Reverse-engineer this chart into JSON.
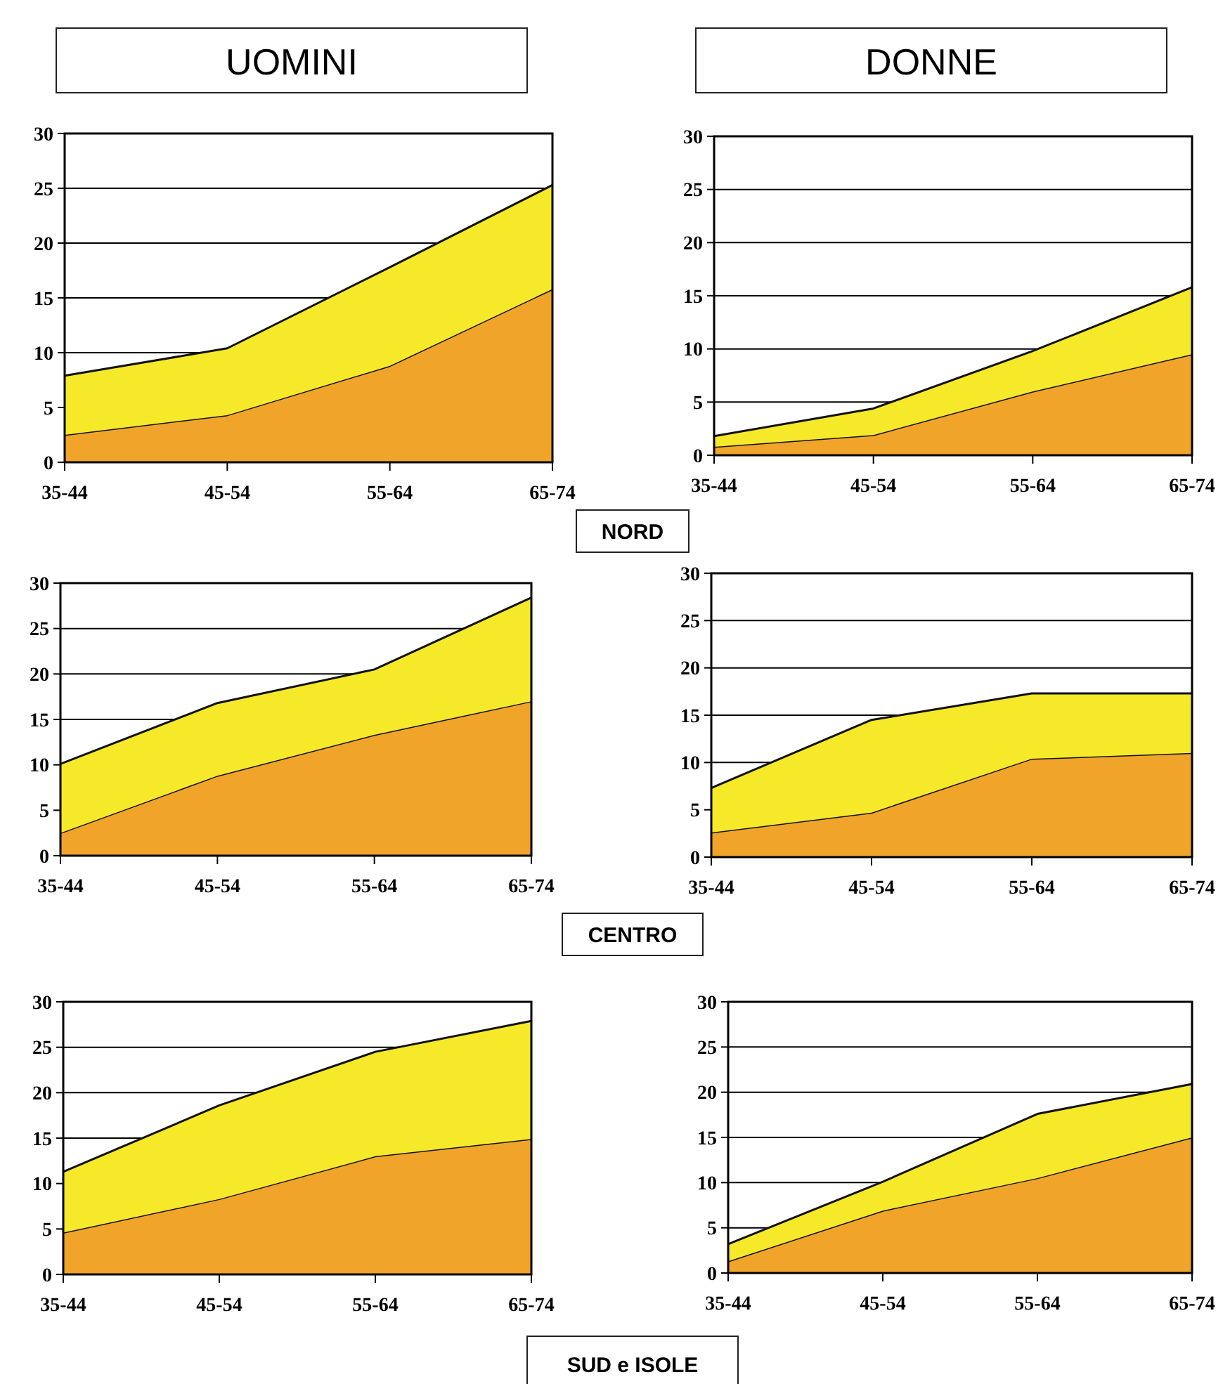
{
  "chart_data": [
    {
      "type": "area",
      "title": "UOMINI",
      "annotations": [
        "NORD"
      ],
      "categories": [
        "35-44",
        "45-54",
        "55-64",
        "65-74"
      ],
      "stacked": true,
      "grid": "y",
      "ylim": [
        0,
        30
      ],
      "yticks": [
        0,
        5,
        10,
        15,
        20,
        25,
        30
      ],
      "series": [
        {
          "color": "#f0a42a",
          "values": [
            2.5,
            4.3,
            8.8,
            15.8
          ]
        },
        {
          "color": "#f5e92a",
          "values": [
            5.4,
            6.1,
            9.0,
            9.5
          ]
        }
      ]
    },
    {
      "type": "area",
      "title": "DONNE",
      "categories": [
        "35-44",
        "45-54",
        "55-64",
        "65-74"
      ],
      "stacked": true,
      "grid": "y",
      "ylim": [
        0,
        30
      ],
      "yticks": [
        0,
        5,
        10,
        15,
        20,
        25,
        30
      ],
      "series": [
        {
          "color": "#f0a42a",
          "values": [
            0.8,
            1.9,
            6.0,
            9.5
          ]
        },
        {
          "color": "#f5e92a",
          "values": [
            1.0,
            2.5,
            3.8,
            6.3
          ]
        }
      ]
    },
    {
      "type": "area",
      "annotations": [
        "CENTRO"
      ],
      "categories": [
        "35-44",
        "45-54",
        "55-64",
        "65-74"
      ],
      "stacked": true,
      "grid": "y",
      "ylim": [
        0,
        30
      ],
      "yticks": [
        0,
        5,
        10,
        15,
        20,
        25,
        30
      ],
      "series": [
        {
          "color": "#f0a42a",
          "values": [
            2.5,
            8.8,
            13.3,
            17.0
          ]
        },
        {
          "color": "#f5e92a",
          "values": [
            7.6,
            8.0,
            7.2,
            11.4
          ]
        }
      ]
    },
    {
      "type": "area",
      "categories": [
        "35-44",
        "45-54",
        "55-64",
        "65-74"
      ],
      "stacked": true,
      "grid": "y",
      "ylim": [
        0,
        30
      ],
      "yticks": [
        0,
        5,
        10,
        15,
        20,
        25,
        30
      ],
      "series": [
        {
          "color": "#f0a42a",
          "values": [
            2.6,
            4.7,
            10.4,
            11.0
          ]
        },
        {
          "color": "#f5e92a",
          "values": [
            4.7,
            9.8,
            6.9,
            6.3
          ]
        }
      ]
    },
    {
      "type": "area",
      "annotations": [
        "SUD e ISOLE"
      ],
      "categories": [
        "35-44",
        "45-54",
        "55-64",
        "65-74"
      ],
      "stacked": true,
      "grid": "y",
      "ylim": [
        0,
        30
      ],
      "yticks": [
        0,
        5,
        10,
        15,
        20,
        25,
        30
      ],
      "series": [
        {
          "color": "#f0a42a",
          "values": [
            4.6,
            8.3,
            13.0,
            14.9
          ]
        },
        {
          "color": "#f5e92a",
          "values": [
            6.7,
            10.3,
            11.5,
            13.0
          ]
        }
      ]
    },
    {
      "type": "area",
      "categories": [
        "35-44",
        "45-54",
        "55-64",
        "65-74"
      ],
      "stacked": true,
      "grid": "y",
      "ylim": [
        0,
        30
      ],
      "yticks": [
        0,
        5,
        10,
        15,
        20,
        25,
        30
      ],
      "series": [
        {
          "color": "#f0a42a",
          "values": [
            1.3,
            6.9,
            10.5,
            15.0
          ]
        },
        {
          "color": "#f5e92a",
          "values": [
            1.9,
            3.2,
            7.1,
            5.9
          ]
        }
      ]
    }
  ]
}
